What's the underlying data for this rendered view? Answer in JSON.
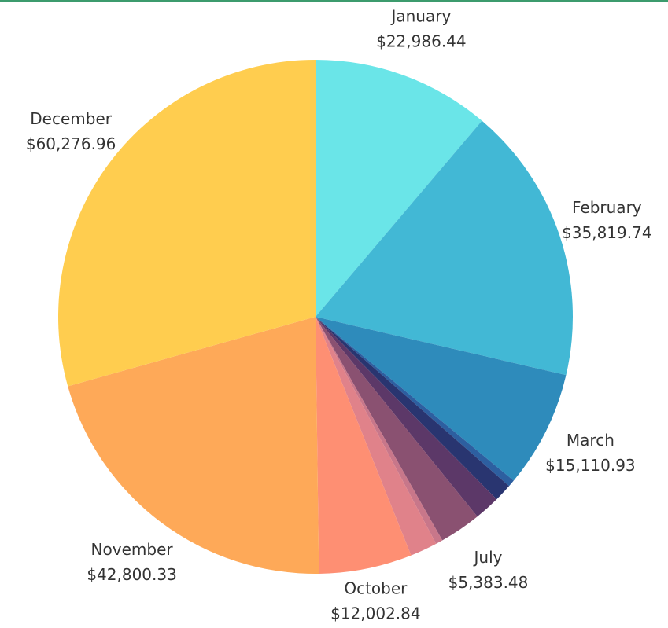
{
  "chart_data": {
    "type": "pie",
    "categories": [
      "January",
      "February",
      "March",
      null,
      null,
      null,
      "July",
      null,
      null,
      "October",
      "November",
      "December"
    ],
    "values": [
      22986.44,
      35819.74,
      15110.93,
      900,
      2300,
      3300,
      5383.48,
      900,
      3500,
      12002.84,
      42800.33,
      60276.96
    ],
    "value_labels": [
      "$22,986.44",
      "$35,819.74",
      "$15,110.93",
      null,
      null,
      null,
      "$5,383.48",
      null,
      null,
      "$12,002.84",
      "$42,800.33",
      "$60,276.96"
    ],
    "colors": [
      "#6ae5e8",
      "#42b8d5",
      "#2e8bbb",
      "#2d5fa0",
      "#293570",
      "#5c3868",
      "#8a5171",
      "#c8778a",
      "#e0828a",
      "#fe8f73",
      "#fea958",
      "#ffcd4f"
    ]
  }
}
